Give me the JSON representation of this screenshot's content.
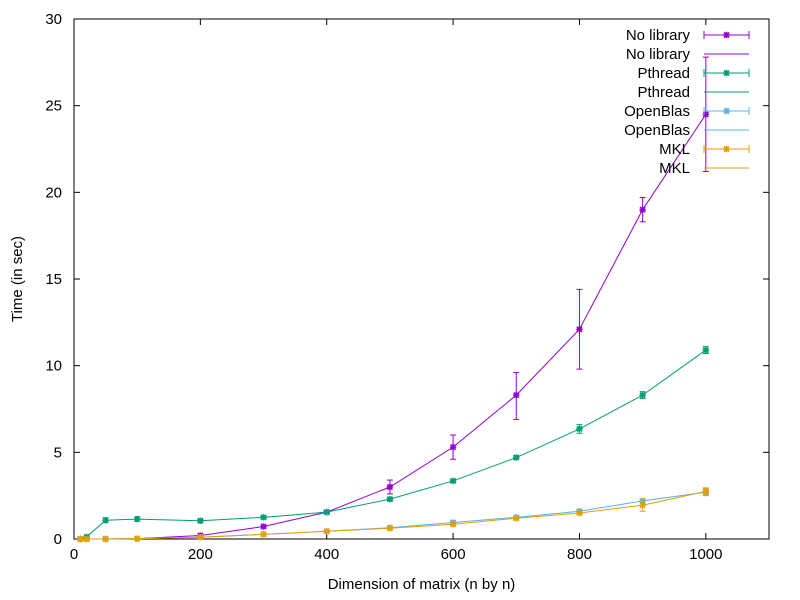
{
  "chart_data": {
    "type": "line",
    "title": "",
    "xlabel": "Dimension of matrix (n by n)",
    "ylabel": "Time (in sec)",
    "xlim": [
      0,
      1100
    ],
    "ylim": [
      0,
      30
    ],
    "xticks": [
      0,
      200,
      400,
      600,
      800,
      1000
    ],
    "yticks": [
      0,
      5,
      10,
      15,
      20,
      25,
      30
    ],
    "grid": false,
    "legend_position": "top-right",
    "legend_entries": [
      "No library",
      "No library",
      "Pthread",
      "Pthread",
      "OpenBlas",
      "OpenBlas",
      "MKL",
      "MKL"
    ],
    "series": [
      {
        "name": "No library",
        "color": "#9400d3",
        "x": [
          10,
          20,
          50,
          100,
          200,
          300,
          400,
          500,
          600,
          700,
          800,
          900,
          1000
        ],
        "y": [
          0.0,
          0.0,
          0.0,
          0.02,
          0.2,
          0.72,
          1.55,
          3.0,
          5.3,
          8.3,
          12.1,
          19.0,
          24.5
        ],
        "err_low": [
          0.0,
          0.0,
          0.0,
          0.02,
          0.2,
          0.7,
          1.5,
          2.6,
          4.6,
          6.9,
          9.8,
          18.3,
          21.2
        ],
        "err_high": [
          0.0,
          0.0,
          0.0,
          0.02,
          0.2,
          0.75,
          1.6,
          3.4,
          6.0,
          9.6,
          14.4,
          19.7,
          27.8
        ]
      },
      {
        "name": "Pthread",
        "color": "#009e73",
        "x": [
          10,
          20,
          50,
          100,
          200,
          300,
          400,
          500,
          600,
          700,
          800,
          900,
          1000
        ],
        "y": [
          0.0,
          0.12,
          1.08,
          1.15,
          1.05,
          1.25,
          1.55,
          2.3,
          3.35,
          4.7,
          6.35,
          8.3,
          10.9
        ],
        "err_low": [
          0.0,
          0.05,
          0.95,
          1.02,
          0.95,
          1.18,
          1.48,
          2.22,
          3.25,
          4.6,
          6.1,
          8.1,
          10.7
        ],
        "err_high": [
          0.0,
          0.18,
          1.22,
          1.28,
          1.12,
          1.32,
          1.62,
          2.38,
          3.45,
          4.8,
          6.6,
          8.5,
          11.1
        ]
      },
      {
        "name": "OpenBlas",
        "color": "#56b4e9",
        "x": [
          10,
          20,
          50,
          100,
          200,
          300,
          400,
          500,
          600,
          700,
          800,
          900,
          1000
        ],
        "y": [
          0.0,
          0.0,
          0.0,
          0.02,
          0.1,
          0.27,
          0.45,
          0.65,
          0.95,
          1.25,
          1.6,
          2.2,
          2.7
        ],
        "err_low": [
          0.0,
          0.0,
          0.0,
          0.02,
          0.08,
          0.24,
          0.42,
          0.61,
          0.9,
          1.2,
          1.52,
          2.1,
          2.5
        ],
        "err_high": [
          0.0,
          0.0,
          0.0,
          0.02,
          0.12,
          0.3,
          0.48,
          0.69,
          1.0,
          1.3,
          1.68,
          2.3,
          2.9
        ]
      },
      {
        "name": "MKL",
        "color": "#e69f00",
        "x": [
          10,
          20,
          50,
          100,
          200,
          300,
          400,
          500,
          600,
          700,
          800,
          900,
          1000
        ],
        "y": [
          0.0,
          0.0,
          0.0,
          0.02,
          0.1,
          0.27,
          0.45,
          0.62,
          0.85,
          1.2,
          1.5,
          1.95,
          2.75
        ],
        "err_low": [
          0.0,
          0.0,
          0.0,
          0.02,
          0.08,
          0.24,
          0.42,
          0.58,
          0.8,
          1.14,
          1.42,
          1.6,
          2.55
        ],
        "err_high": [
          0.0,
          0.0,
          0.0,
          0.02,
          0.12,
          0.3,
          0.48,
          0.66,
          0.9,
          1.26,
          1.58,
          2.3,
          2.95
        ]
      }
    ]
  }
}
